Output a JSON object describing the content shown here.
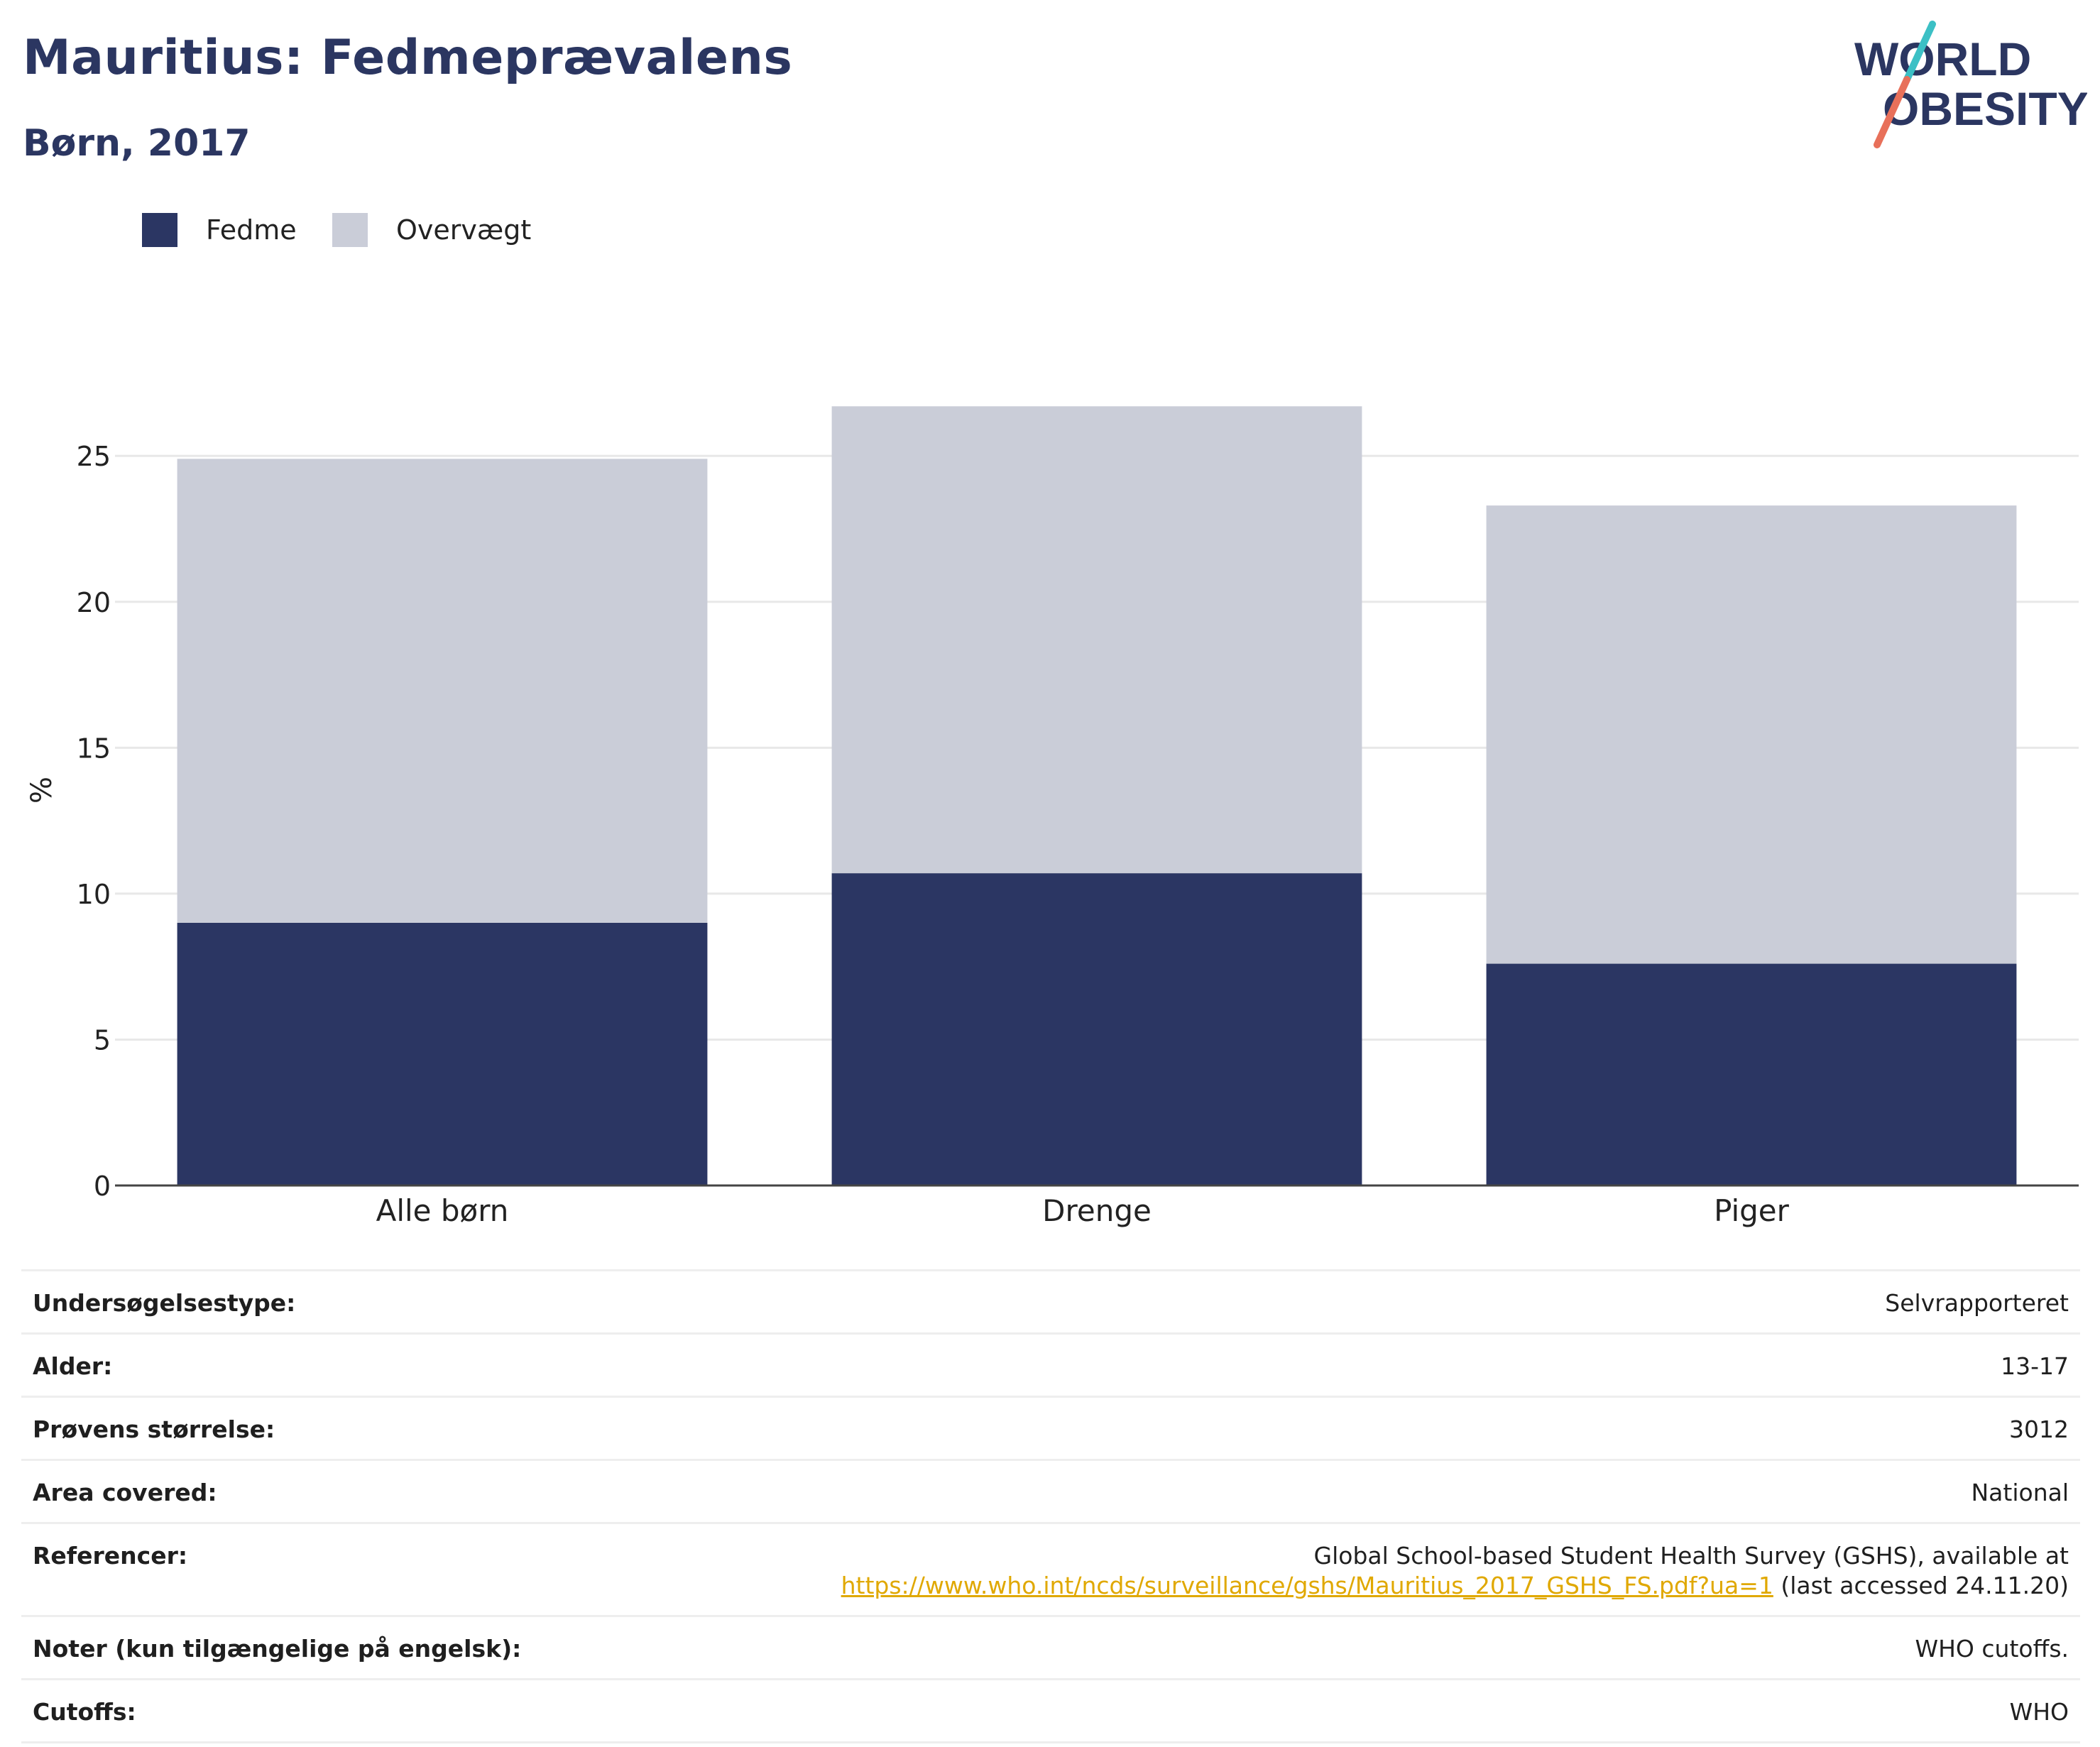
{
  "header": {
    "title": "Mauritius: Fedmeprævalens",
    "subtitle": "Børn, 2017",
    "logo_text_line1": "WORLD",
    "logo_text_line2": "OBESITY"
  },
  "colors": {
    "fedme": "#2b3663",
    "overvaegt": "#cacdd8",
    "title": "#2b3661",
    "link": "#e0a800",
    "logo_teal": "#3cc0c5",
    "logo_coral": "#e8705a"
  },
  "chart_data": {
    "type": "bar",
    "stacked": true,
    "categories": [
      "Alle børn",
      "Drenge",
      "Piger"
    ],
    "series": [
      {
        "name": "Fedme",
        "values": [
          9.0,
          10.7,
          7.6
        ]
      },
      {
        "name": "Overvægt",
        "values": [
          15.9,
          16.0,
          15.7
        ]
      }
    ],
    "ylabel": "%",
    "xlabel": "",
    "ylim": [
      0,
      27
    ],
    "yticks": [
      0,
      5,
      10,
      15,
      20,
      25
    ],
    "grid": true,
    "legend_position": "top-left"
  },
  "info": {
    "rows": [
      {
        "label": "Undersøgelsestype:",
        "value": "Selvrapporteret"
      },
      {
        "label": "Alder:",
        "value": "13-17"
      },
      {
        "label": "Prøvens størrelse:",
        "value": "3012"
      },
      {
        "label": "Area covered:",
        "value": "National"
      }
    ],
    "references": {
      "label": "Referencer:",
      "text_before": "Global School-based Student Health Survey (GSHS), available at",
      "link": "https://www.who.int/ncds/surveillance/gshs/Mauritius_2017_GSHS_FS.pdf?ua=1",
      "text_after": " (last accessed 24.11.20)"
    },
    "rows_after": [
      {
        "label": "Noter (kun tilgængelige på engelsk):",
        "value": "WHO cutoffs."
      },
      {
        "label": "Cutoffs:",
        "value": "WHO"
      }
    ]
  }
}
